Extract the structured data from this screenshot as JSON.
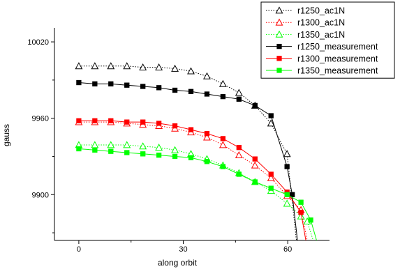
{
  "chart_data": {
    "type": "line",
    "title": "",
    "xlabel": "along orbit",
    "ylabel": "gauss",
    "xlim": [
      -7,
      72
    ],
    "ylim": [
      9864,
      10031
    ],
    "x_ticks": [
      0,
      30,
      60
    ],
    "y_ticks": [
      9900,
      9960,
      10020
    ],
    "grid": false,
    "legend_position": "top-right",
    "series": [
      {
        "name": "r1250_ac1N",
        "color": "#000000",
        "marker": "triangle-open",
        "line": "dotted",
        "x": [
          0,
          4.6,
          9.2,
          13.8,
          18.4,
          23,
          27.6,
          32.2,
          36.8,
          41.4,
          46,
          50.6,
          55.2,
          59.8,
          62.5
        ],
        "y": [
          10001,
          10001,
          10001,
          10001,
          10000,
          10000,
          9999,
          9997,
          9993,
          9987,
          9980,
          9970,
          9956,
          9932,
          9864
        ]
      },
      {
        "name": "r1300_ac1N",
        "color": "#ff0000",
        "marker": "triangle-open",
        "line": "dotted",
        "x": [
          0,
          4.6,
          9.2,
          13.8,
          18.4,
          23,
          27.6,
          32.2,
          36.8,
          41.4,
          46,
          50.6,
          55.2,
          59.8,
          63.8,
          65.6
        ],
        "y": [
          9957,
          9957,
          9957,
          9956,
          9955,
          9954,
          9952,
          9949,
          9945,
          9939,
          9931,
          9923,
          9913,
          9899,
          9888,
          9864
        ]
      },
      {
        "name": "r1350_ac1N",
        "color": "#00ff00",
        "marker": "triangle-open",
        "line": "dotted",
        "x": [
          0,
          4.6,
          9.2,
          13.8,
          18.4,
          23,
          27.6,
          32.2,
          36.8,
          41.4,
          46,
          50.6,
          55.2,
          59.8,
          63.8,
          65.6,
          67.3
        ],
        "y": [
          9939,
          9939,
          9939,
          9939,
          9938,
          9937,
          9935,
          9932,
          9928,
          9923,
          9917,
          9910,
          9903,
          9893,
          9883,
          9879,
          9864
        ]
      },
      {
        "name": "r1250_measurement",
        "color": "#000000",
        "marker": "square-filled",
        "line": "solid",
        "x": [
          0,
          4.6,
          9.2,
          13.8,
          18.4,
          23,
          27.6,
          32.2,
          36.8,
          41.4,
          46,
          50.6,
          55.2,
          59.8,
          61.3,
          62.8
        ],
        "y": [
          9988,
          9987,
          9987,
          9986,
          9985,
          9984,
          9982,
          9981,
          9979,
          9977,
          9975,
          9970,
          9962,
          9922,
          9900,
          9864
        ]
      },
      {
        "name": "r1300_measurement",
        "color": "#ff0000",
        "marker": "square-filled",
        "line": "solid",
        "x": [
          0,
          4.6,
          9.2,
          13.8,
          18.4,
          23,
          27.6,
          32.2,
          36.8,
          41.4,
          46,
          50.6,
          55.2,
          59.8,
          63.8,
          65.2
        ],
        "y": [
          9958,
          9958,
          9958,
          9957,
          9957,
          9956,
          9954,
          9951,
          9948,
          9944,
          9937,
          9928,
          9916,
          9902,
          9886,
          9864
        ]
      },
      {
        "name": "r1350_measurement",
        "color": "#00ff00",
        "marker": "square-filled",
        "line": "solid",
        "x": [
          0,
          4.6,
          9.2,
          13.8,
          18.4,
          23,
          27.6,
          32.2,
          36.8,
          41.4,
          46,
          50.6,
          55.2,
          59.8,
          63.8,
          66.6,
          68.3
        ],
        "y": [
          9936,
          9935,
          9934,
          9933,
          9932,
          9931,
          9930,
          9929,
          9926,
          9922,
          9916,
          9910,
          9905,
          9900,
          9894,
          9880,
          9864
        ]
      }
    ]
  }
}
